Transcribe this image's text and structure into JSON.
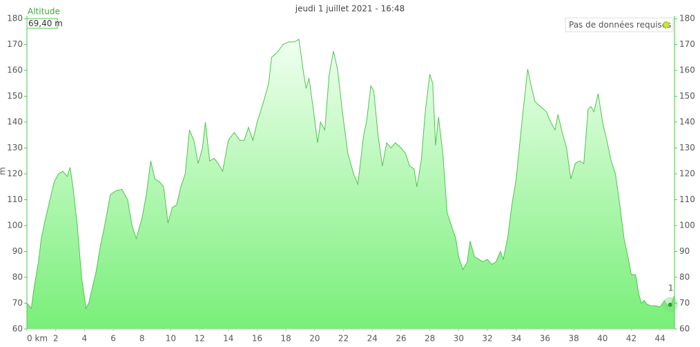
{
  "chart_data": {
    "type": "area",
    "title": "jeudi 1 juillet 2021 - 16:48",
    "y_label": "Altitude",
    "y_unit": "m",
    "cursor": {
      "value": 69.4,
      "label": "69,40 m",
      "x": 44.7,
      "marker": "1"
    },
    "button": "Pas de données requises",
    "color": "#4cc44c",
    "fill_top": "#f0fff0",
    "fill_bottom": "#78ef78",
    "xlim": [
      0,
      45
    ],
    "xticks": [
      {
        "value": 0,
        "label": "0 km"
      },
      2,
      4,
      6,
      8,
      10,
      12,
      14,
      16,
      18,
      20,
      22,
      24,
      26,
      28,
      30,
      32,
      34,
      36,
      38,
      40,
      42,
      44
    ],
    "ylim": [
      60,
      180
    ],
    "yticks": [
      60,
      70,
      80,
      90,
      100,
      110,
      120,
      130,
      140,
      150,
      160,
      170,
      180
    ],
    "y2lim": [
      60,
      180
    ],
    "y2ticks": [
      60,
      70,
      80,
      90,
      100,
      110,
      120,
      130,
      140,
      150,
      160,
      170,
      180
    ],
    "x": [
      0,
      0.3,
      0.5,
      0.8,
      1.0,
      1.3,
      1.6,
      1.9,
      2.2,
      2.5,
      2.8,
      3.0,
      3.2,
      3.5,
      3.8,
      4.1,
      4.3,
      4.5,
      4.8,
      5.1,
      5.4,
      5.8,
      6.2,
      6.6,
      7.0,
      7.3,
      7.6,
      8.0,
      8.3,
      8.6,
      8.9,
      9.2,
      9.5,
      9.8,
      10.1,
      10.4,
      10.7,
      11.0,
      11.3,
      11.6,
      11.9,
      12.2,
      12.4,
      12.7,
      13.0,
      13.3,
      13.6,
      14.0,
      14.4,
      14.8,
      15.1,
      15.4,
      15.7,
      16.0,
      16.4,
      16.8,
      17.0,
      17.4,
      17.8,
      18.2,
      18.6,
      18.9,
      19.2,
      19.4,
      19.6,
      19.9,
      20.2,
      20.4,
      20.7,
      21.0,
      21.3,
      21.6,
      21.9,
      22.3,
      22.7,
      23.0,
      23.4,
      23.6,
      23.9,
      24.1,
      24.4,
      24.7,
      25.0,
      25.3,
      25.6,
      26.0,
      26.3,
      26.6,
      26.9,
      27.1,
      27.4,
      27.7,
      28.0,
      28.2,
      28.4,
      28.6,
      28.9,
      29.2,
      29.5,
      29.8,
      30.0,
      30.3,
      30.6,
      30.8,
      31.1,
      31.4,
      31.7,
      32.0,
      32.3,
      32.6,
      32.9,
      33.1,
      33.4,
      33.7,
      34.0,
      34.4,
      34.8,
      35.0,
      35.3,
      35.7,
      36.1,
      36.4,
      36.7,
      36.9,
      37.2,
      37.5,
      37.8,
      38.1,
      38.4,
      38.7,
      39.0,
      39.2,
      39.4,
      39.7,
      40.0,
      40.3,
      40.6,
      40.9,
      41.2,
      41.5,
      41.8,
      42.0,
      42.3,
      42.5,
      42.7,
      42.9,
      43.1,
      43.4,
      43.7,
      44.0,
      44.3,
      44.5,
      44.8,
      45.0
    ],
    "values": [
      70,
      68,
      76,
      86,
      95,
      103,
      110,
      117,
      120,
      121,
      119,
      122.5,
      115,
      100,
      80,
      68,
      70,
      75,
      82,
      92,
      100,
      112,
      113.5,
      114,
      110,
      100,
      95,
      103,
      112,
      125,
      118,
      117,
      115,
      101,
      107,
      108,
      115,
      120,
      137,
      133,
      124,
      130,
      140,
      125,
      126,
      124,
      121,
      133,
      136,
      133,
      133,
      138,
      133,
      140,
      147,
      155,
      165,
      167,
      170,
      171,
      171,
      172,
      160,
      153,
      157,
      145,
      132,
      140,
      137,
      158,
      167.5,
      160,
      145,
      128,
      120,
      116,
      135,
      140,
      154,
      152,
      135,
      123,
      132,
      130,
      132,
      130,
      128,
      123,
      122,
      115,
      125,
      145,
      158.5,
      155,
      131,
      142,
      128,
      105,
      100,
      95,
      88,
      83,
      86,
      94,
      88,
      87,
      86,
      87,
      85,
      86,
      90,
      87,
      95,
      108,
      118,
      140,
      160.5,
      155,
      148,
      146,
      144,
      140,
      137,
      143,
      136,
      130,
      118,
      124,
      125,
      124,
      145,
      146,
      144,
      151,
      140,
      133,
      125,
      120,
      108,
      95,
      87,
      81,
      81,
      74,
      70,
      71,
      69.5,
      69,
      69,
      68.5,
      71,
      69,
      70,
      73
    ]
  }
}
